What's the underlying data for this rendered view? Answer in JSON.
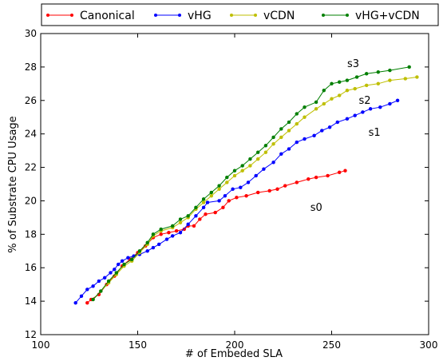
{
  "chart_data": {
    "type": "line",
    "title": "",
    "xlabel": "# of Embeded SLA",
    "ylabel": "% of Substrate CPU Usage",
    "xlim": [
      100,
      300
    ],
    "ylim": [
      12,
      30
    ],
    "xticks": [
      "100",
      "150",
      "200",
      "250",
      "300"
    ],
    "yticks": [
      "12",
      "14",
      "16",
      "18",
      "20",
      "22",
      "24",
      "26",
      "28",
      "30"
    ],
    "grid": false,
    "legend_position": "top",
    "series": [
      {
        "name": "Canonical",
        "color": "#ff0000",
        "points": [
          [
            124,
            13.9
          ],
          [
            126,
            14.1
          ],
          [
            130,
            14.4
          ],
          [
            134,
            15.0
          ],
          [
            138,
            15.5
          ],
          [
            142,
            16.1
          ],
          [
            146,
            16.5
          ],
          [
            150,
            16.9
          ],
          [
            154,
            17.3
          ],
          [
            158,
            17.8
          ],
          [
            162,
            18.0
          ],
          [
            166,
            18.1
          ],
          [
            170,
            18.2
          ],
          [
            174,
            18.3
          ],
          [
            176,
            18.5
          ],
          [
            179,
            18.5
          ],
          [
            182,
            18.9
          ],
          [
            185,
            19.2
          ],
          [
            190,
            19.3
          ],
          [
            194,
            19.6
          ],
          [
            197,
            20.0
          ],
          [
            201,
            20.2
          ],
          [
            206,
            20.3
          ],
          [
            212,
            20.5
          ],
          [
            218,
            20.6
          ],
          [
            222,
            20.7
          ],
          [
            226,
            20.9
          ],
          [
            232,
            21.1
          ],
          [
            238,
            21.3
          ],
          [
            242,
            21.4
          ],
          [
            248,
            21.5
          ],
          [
            254,
            21.7
          ],
          [
            257,
            21.8
          ]
        ]
      },
      {
        "name": "vHG",
        "color": "#0000ff",
        "points": [
          [
            118,
            13.9
          ],
          [
            121,
            14.3
          ],
          [
            124,
            14.7
          ],
          [
            127,
            14.9
          ],
          [
            130,
            15.2
          ],
          [
            133,
            15.4
          ],
          [
            136,
            15.7
          ],
          [
            138,
            15.9
          ],
          [
            140,
            16.2
          ],
          [
            142,
            16.4
          ],
          [
            145,
            16.6
          ],
          [
            148,
            16.7
          ],
          [
            151,
            16.8
          ],
          [
            155,
            17.0
          ],
          [
            158,
            17.2
          ],
          [
            161,
            17.4
          ],
          [
            165,
            17.7
          ],
          [
            168,
            17.9
          ],
          [
            172,
            18.1
          ],
          [
            176,
            18.6
          ],
          [
            180,
            19.1
          ],
          [
            184,
            19.6
          ],
          [
            186,
            19.9
          ],
          [
            192,
            20.0
          ],
          [
            195,
            20.3
          ],
          [
            199,
            20.7
          ],
          [
            203,
            20.8
          ],
          [
            207,
            21.1
          ],
          [
            211,
            21.5
          ],
          [
            215,
            21.9
          ],
          [
            220,
            22.3
          ],
          [
            224,
            22.8
          ],
          [
            228,
            23.1
          ],
          [
            232,
            23.5
          ],
          [
            236,
            23.7
          ],
          [
            241,
            23.9
          ],
          [
            245,
            24.2
          ],
          [
            249,
            24.4
          ],
          [
            253,
            24.7
          ],
          [
            258,
            24.9
          ],
          [
            262,
            25.1
          ],
          [
            266,
            25.3
          ],
          [
            270,
            25.5
          ],
          [
            275,
            25.6
          ],
          [
            280,
            25.8
          ],
          [
            284,
            26.0
          ]
        ]
      },
      {
        "name": "vCDN",
        "color": "#bfbf00",
        "points": [
          [
            127,
            14.1
          ],
          [
            131,
            14.6
          ],
          [
            135,
            15.1
          ],
          [
            139,
            15.6
          ],
          [
            143,
            16.1
          ],
          [
            147,
            16.4
          ],
          [
            151,
            16.9
          ],
          [
            155,
            17.4
          ],
          [
            158,
            17.9
          ],
          [
            162,
            18.2
          ],
          [
            168,
            18.4
          ],
          [
            172,
            18.7
          ],
          [
            176,
            19.0
          ],
          [
            180,
            19.5
          ],
          [
            184,
            19.9
          ],
          [
            188,
            20.3
          ],
          [
            192,
            20.7
          ],
          [
            196,
            21.1
          ],
          [
            200,
            21.5
          ],
          [
            204,
            21.8
          ],
          [
            208,
            22.1
          ],
          [
            212,
            22.5
          ],
          [
            216,
            22.9
          ],
          [
            220,
            23.4
          ],
          [
            224,
            23.8
          ],
          [
            228,
            24.2
          ],
          [
            232,
            24.6
          ],
          [
            236,
            25.0
          ],
          [
            242,
            25.5
          ],
          [
            246,
            25.8
          ],
          [
            250,
            26.1
          ],
          [
            254,
            26.3
          ],
          [
            258,
            26.6
          ],
          [
            262,
            26.7
          ],
          [
            268,
            26.9
          ],
          [
            274,
            27.0
          ],
          [
            280,
            27.2
          ],
          [
            288,
            27.3
          ],
          [
            294,
            27.4
          ]
        ]
      },
      {
        "name": "vHG+vCDN",
        "color": "#007f00",
        "points": [
          [
            127,
            14.1
          ],
          [
            131,
            14.6
          ],
          [
            135,
            15.2
          ],
          [
            139,
            15.7
          ],
          [
            143,
            16.2
          ],
          [
            147,
            16.5
          ],
          [
            151,
            17.0
          ],
          [
            155,
            17.5
          ],
          [
            158,
            18.0
          ],
          [
            162,
            18.3
          ],
          [
            168,
            18.5
          ],
          [
            172,
            18.9
          ],
          [
            176,
            19.1
          ],
          [
            180,
            19.6
          ],
          [
            184,
            20.1
          ],
          [
            188,
            20.5
          ],
          [
            192,
            20.9
          ],
          [
            196,
            21.4
          ],
          [
            200,
            21.8
          ],
          [
            204,
            22.1
          ],
          [
            208,
            22.5
          ],
          [
            212,
            22.9
          ],
          [
            216,
            23.3
          ],
          [
            220,
            23.8
          ],
          [
            224,
            24.3
          ],
          [
            228,
            24.7
          ],
          [
            232,
            25.2
          ],
          [
            236,
            25.6
          ],
          [
            242,
            25.9
          ],
          [
            246,
            26.6
          ],
          [
            250,
            27.0
          ],
          [
            254,
            27.1
          ],
          [
            258,
            27.2
          ],
          [
            263,
            27.4
          ],
          [
            268,
            27.6
          ],
          [
            274,
            27.7
          ],
          [
            280,
            27.8
          ],
          [
            290,
            28.0
          ]
        ]
      }
    ],
    "annotations": [
      {
        "text": "s0",
        "x": 239,
        "y": 19.4
      },
      {
        "text": "s1",
        "x": 269,
        "y": 23.9
      },
      {
        "text": "s2",
        "x": 264,
        "y": 25.8
      },
      {
        "text": "s3",
        "x": 258,
        "y": 28.0
      }
    ]
  }
}
